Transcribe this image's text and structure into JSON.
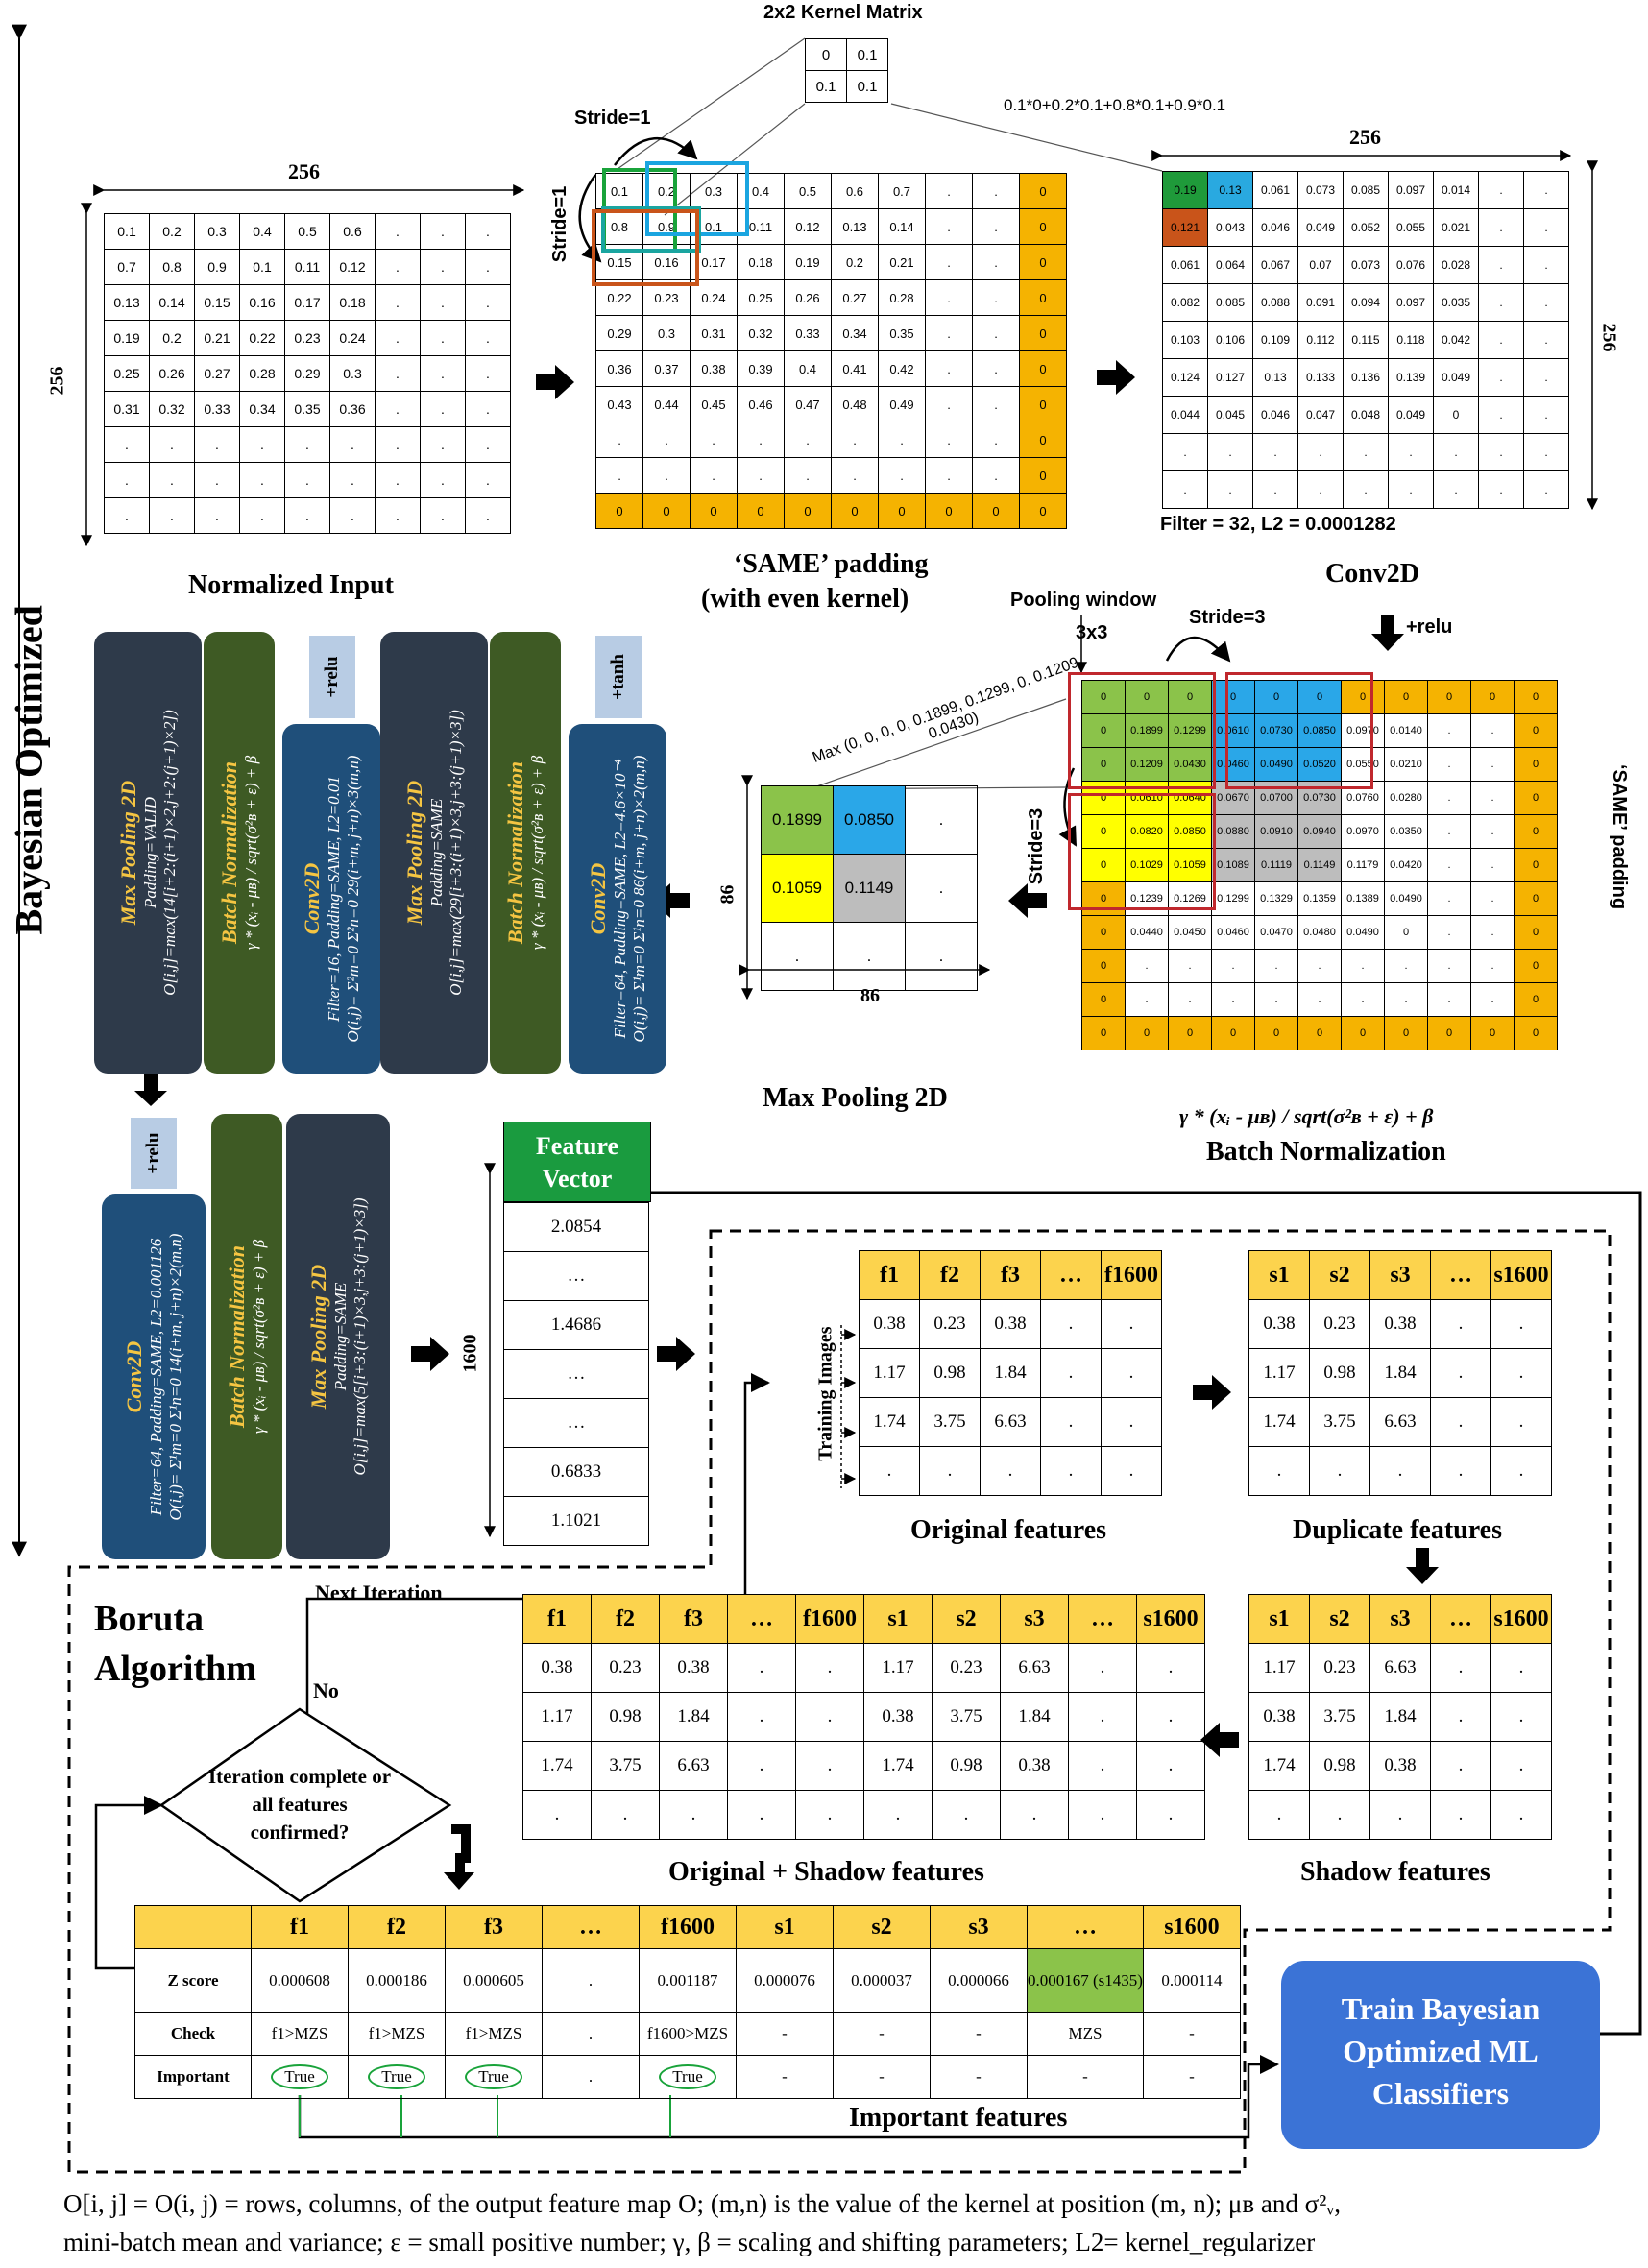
{
  "left_axis": {
    "label": "Bayesian  Optimized"
  },
  "kernel": {
    "title": "2x2 Kernel Matrix",
    "cells": [
      [
        "0",
        "0.1"
      ],
      [
        "0.1",
        "0.1"
      ]
    ],
    "formula": "0.1*0+0.2*0.1+0.8*0.1+0.9*0.1"
  },
  "input_grid": {
    "dim_label": "256",
    "side_label": "256",
    "caption": "Normalized Input",
    "rows": [
      [
        "0.1",
        "0.2",
        "0.3",
        "0.4",
        "0.5",
        "0.6",
        ".",
        ".",
        "."
      ],
      [
        "0.7",
        "0.8",
        "0.9",
        "0.1",
        "0.11",
        "0.12",
        ".",
        ".",
        "."
      ],
      [
        "0.13",
        "0.14",
        "0.15",
        "0.16",
        "0.17",
        "0.18",
        ".",
        ".",
        "."
      ],
      [
        "0.19",
        "0.2",
        "0.21",
        "0.22",
        "0.23",
        "0.24",
        ".",
        ".",
        "."
      ],
      [
        "0.25",
        "0.26",
        "0.27",
        "0.28",
        "0.29",
        "0.3",
        ".",
        ".",
        "."
      ],
      [
        "0.31",
        "0.32",
        "0.33",
        "0.34",
        "0.35",
        "0.36",
        ".",
        ".",
        "."
      ],
      [
        ".",
        ".",
        ".",
        ".",
        ".",
        ".",
        ".",
        ".",
        "."
      ],
      [
        ".",
        ".",
        ".",
        ".",
        ".",
        ".",
        ".",
        ".",
        "."
      ],
      [
        ".",
        ".",
        ".",
        ".",
        ".",
        ".",
        ".",
        ".",
        "."
      ]
    ]
  },
  "padded_grid": {
    "stride_top": "Stride=1",
    "stride_left": "Stride=1",
    "caption_line1": "‘SAME’ padding",
    "caption_line2": "(with even kernel)",
    "rows": [
      [
        "0.1",
        "0.2",
        "0.3",
        "0.4",
        "0.5",
        "0.6",
        "0.7",
        ".",
        ".",
        "0"
      ],
      [
        "0.8",
        "0.9",
        "0.1",
        "0.11",
        "0.12",
        "0.13",
        "0.14",
        ".",
        ".",
        "0"
      ],
      [
        "0.15",
        "0.16",
        "0.17",
        "0.18",
        "0.19",
        "0.2",
        "0.21",
        ".",
        ".",
        "0"
      ],
      [
        "0.22",
        "0.23",
        "0.24",
        "0.25",
        "0.26",
        "0.27",
        "0.28",
        ".",
        ".",
        "0"
      ],
      [
        "0.29",
        "0.3",
        "0.31",
        "0.32",
        "0.33",
        "0.34",
        "0.35",
        ".",
        ".",
        "0"
      ],
      [
        "0.36",
        "0.37",
        "0.38",
        "0.39",
        "0.4",
        "0.41",
        "0.42",
        ".",
        ".",
        "0"
      ],
      [
        "0.43",
        "0.44",
        "0.45",
        "0.46",
        "0.47",
        "0.48",
        "0.49",
        ".",
        ".",
        "0"
      ],
      [
        ".",
        ".",
        ".",
        ".",
        ".",
        ".",
        ".",
        ".",
        ".",
        "0"
      ],
      [
        ".",
        ".",
        ".",
        ".",
        ".",
        ".",
        ".",
        ".",
        ".",
        "0"
      ],
      [
        "0",
        "0",
        "0",
        "0",
        "0",
        "0",
        "0",
        "0",
        "0",
        "0"
      ]
    ]
  },
  "conv_grid": {
    "dim_label": "256",
    "side_label": "256",
    "filter_label": "Filter = 32, L2 = 0.0001282",
    "caption": "Conv2D",
    "relu": "+relu",
    "rows": [
      [
        "0.19",
        "0.13",
        "0.061",
        "0.073",
        "0.085",
        "0.097",
        "0.014",
        ".",
        "."
      ],
      [
        "0.121",
        "0.043",
        "0.046",
        "0.049",
        "0.052",
        "0.055",
        "0.021",
        ".",
        "."
      ],
      [
        "0.061",
        "0.064",
        "0.067",
        "0.07",
        "0.073",
        "0.076",
        "0.028",
        ".",
        "."
      ],
      [
        "0.082",
        "0.085",
        "0.088",
        "0.091",
        "0.094",
        "0.097",
        "0.035",
        ".",
        "."
      ],
      [
        "0.103",
        "0.106",
        "0.109",
        "0.112",
        "0.115",
        "0.118",
        "0.042",
        ".",
        "."
      ],
      [
        "0.124",
        "0.127",
        "0.13",
        "0.133",
        "0.136",
        "0.139",
        "0.049",
        ".",
        "."
      ],
      [
        "0.044",
        "0.045",
        "0.046",
        "0.047",
        "0.048",
        "0.049",
        "0",
        ".",
        "."
      ],
      [
        ".",
        ".",
        ".",
        ".",
        ".",
        ".",
        ".",
        ".",
        "."
      ],
      [
        ".",
        ".",
        ".",
        ".",
        ".",
        ".",
        ".",
        ".",
        "."
      ]
    ]
  },
  "bn_grid": {
    "pool_window": "Pooling window",
    "pool_size": "3x3",
    "stride_top": "Stride=3",
    "stride_left": "Stride=3",
    "side_caption": "‘SAME’ padding",
    "formula": "γ * (xᵢ - μʙ) / sqrt(σ²ʙ + ε) + β",
    "caption": "Batch Normalization",
    "max_text": "Max (0, 0, 0, 0, 0.1899, 0.1299, 0, 0.1209, 0.0430)",
    "rows": [
      [
        "0",
        "0",
        "0",
        "0",
        "0",
        "0",
        "0",
        "0",
        "0",
        "0",
        "0"
      ],
      [
        "0",
        "0.1899",
        "0.1299",
        "0.0610",
        "0.0730",
        "0.0850",
        "0.0970",
        "0.0140",
        ".",
        ".",
        "0"
      ],
      [
        "0",
        "0.1209",
        "0.0430",
        "0.0460",
        "0.0490",
        "0.0520",
        "0.0550",
        "0.0210",
        ".",
        ".",
        "0"
      ],
      [
        "0",
        "0.0610",
        "0.0640",
        "0.0670",
        "0.0700",
        "0.0730",
        "0.0760",
        "0.0280",
        ".",
        ".",
        "0"
      ],
      [
        "0",
        "0.0820",
        "0.0850",
        "0.0880",
        "0.0910",
        "0.0940",
        "0.0970",
        "0.0350",
        ".",
        ".",
        "0"
      ],
      [
        "0",
        "0.1029",
        "0.1059",
        "0.1089",
        "0.1119",
        "0.1149",
        "0.1179",
        "0.0420",
        ".",
        ".",
        "0"
      ],
      [
        "0",
        "0.1239",
        "0.1269",
        "0.1299",
        "0.1329",
        "0.1359",
        "0.1389",
        "0.0490",
        ".",
        ".",
        "0"
      ],
      [
        "0",
        "0.0440",
        "0.0450",
        "0.0460",
        "0.0470",
        "0.0480",
        "0.0490",
        "0",
        ".",
        ".",
        "0"
      ],
      [
        "0",
        ".",
        ".",
        ".",
        ".",
        ".",
        ".",
        ".",
        ".",
        ".",
        "0"
      ],
      [
        "0",
        ".",
        ".",
        ".",
        ".",
        ".",
        ".",
        ".",
        ".",
        ".",
        "0"
      ],
      [
        "0",
        "0",
        "0",
        "0",
        "0",
        "0",
        "0",
        "0",
        "0",
        "0",
        "0"
      ]
    ]
  },
  "pool_grid": {
    "dim": "86",
    "side": "86",
    "caption": "Max Pooling 2D",
    "rows": [
      [
        "0.1899",
        "0.0850",
        "."
      ],
      [
        "0.1059",
        "0.1149",
        "."
      ],
      [
        ".",
        ".",
        "."
      ]
    ]
  },
  "blocks_row1": [
    {
      "title": "Max Pooling 2D",
      "l1": "Padding=VALID",
      "l2": "O[i,j]=max(14[i+2:(i+1)×2,j+2:(j+1)×2])"
    },
    {
      "title": "Batch Normalization",
      "l1": "γ * (xᵢ - μʙ) / sqrt(σ²ʙ + ε) + β",
      "l2": ""
    },
    {
      "title": "Conv2D",
      "l1": "Filter=16, Padding=SAME, L2=0.01",
      "l2": "O(i,j)= Σ²m=0 Σ²n=0  29(i+m, j+n)×3(m,n)",
      "tag": "+relu"
    },
    {
      "title": "Max Pooling 2D",
      "l1": "Padding=SAME",
      "l2": "O[i,j]=max(29[i+3:(i+1)×3,j+3:(j+1)×3])"
    },
    {
      "title": "Batch Normalization",
      "l1": "γ * (xᵢ - μʙ) / sqrt(σ²ʙ + ε) + β",
      "l2": ""
    },
    {
      "title": "Conv2D",
      "l1": "Filter=64, Padding=SAME, L2=4.6×10⁻⁴",
      "l2": "O(i,j)= Σ¹m=0 Σ¹n=0  86(i+m, j+n)×2(m,n)",
      "tag": "+tanh"
    }
  ],
  "blocks_row2": [
    {
      "title": "Conv2D",
      "l1": "Filter=64, Padding=SAME, L2=0.001126",
      "l2": "O(i,j)= Σ¹m=0 Σ¹n=0  14(i+m, j+n)×2(m,n)",
      "tag": "+relu"
    },
    {
      "title": "Batch Normalization",
      "l1": "γ * (xᵢ - μʙ) / sqrt(σ²ʙ + ε) + β",
      "l2": ""
    },
    {
      "title": "Max Pooling 2D",
      "l1": "Padding=SAME",
      "l2": "O[i,j]=max(5[i+3:(i+1)×3,j+3:(j+1)×3])"
    }
  ],
  "feature_vector": {
    "header": "Feature Vector",
    "length": "1600",
    "values": [
      "2.0854",
      "…",
      "1.4686",
      "…",
      "…",
      "0.6833",
      "1.1021"
    ]
  },
  "original_features": {
    "caption": "Original features",
    "side": "Training Images",
    "headers": [
      "f1",
      "f2",
      "f3",
      "…",
      "f1600"
    ],
    "rows": [
      [
        "0.38",
        "0.23",
        "0.38",
        ".",
        "."
      ],
      [
        "1.17",
        "0.98",
        "1.84",
        ".",
        "."
      ],
      [
        "1.74",
        "3.75",
        "6.63",
        ".",
        "."
      ],
      [
        ".",
        ".",
        ".",
        ".",
        "."
      ]
    ]
  },
  "duplicate_features": {
    "caption": "Duplicate features",
    "headers": [
      "s1",
      "s2",
      "s3",
      "…",
      "s1600"
    ],
    "rows": [
      [
        "0.38",
        "0.23",
        "0.38",
        ".",
        "."
      ],
      [
        "1.17",
        "0.98",
        "1.84",
        ".",
        "."
      ],
      [
        "1.74",
        "3.75",
        "6.63",
        ".",
        "."
      ],
      [
        ".",
        ".",
        ".",
        ".",
        "."
      ]
    ]
  },
  "shadow_features": {
    "caption": "Shadow features",
    "headers": [
      "s1",
      "s2",
      "s3",
      "…",
      "s1600"
    ],
    "rows": [
      [
        "1.17",
        "0.23",
        "6.63",
        ".",
        "."
      ],
      [
        "0.38",
        "3.75",
        "1.84",
        ".",
        "."
      ],
      [
        "1.74",
        "0.98",
        "0.38",
        ".",
        "."
      ],
      [
        ".",
        ".",
        ".",
        ".",
        "."
      ]
    ]
  },
  "combined_features": {
    "caption": "Original + Shadow features",
    "headers": [
      "f1",
      "f2",
      "f3",
      "…",
      "f1600",
      "s1",
      "s2",
      "s3",
      "…",
      "s1600"
    ],
    "rows": [
      [
        "0.38",
        "0.23",
        "0.38",
        ".",
        ".",
        "1.17",
        "0.23",
        "6.63",
        ".",
        "."
      ],
      [
        "1.17",
        "0.98",
        "1.84",
        ".",
        ".",
        "0.38",
        "3.75",
        "1.84",
        ".",
        "."
      ],
      [
        "1.74",
        "3.75",
        "6.63",
        ".",
        ".",
        "1.74",
        "0.98",
        "0.38",
        ".",
        "."
      ],
      [
        ".",
        ".",
        ".",
        ".",
        ".",
        ".",
        ".",
        ".",
        ".",
        "."
      ]
    ]
  },
  "boruta": {
    "title_line1": "Boruta",
    "title_line2": "Algorithm",
    "next_iter": "Next Iteration",
    "no": "No",
    "decision": "Iteration complete or all features confirmed?",
    "important_caption": "Important features",
    "train_box": "Train Bayesian Optimized ML Classifiers"
  },
  "zscore_table": {
    "headers": [
      "",
      "f1",
      "f2",
      "f3",
      "…",
      "f1600",
      "s1",
      "s2",
      "s3",
      "…",
      "s1600"
    ],
    "z": [
      "Z score",
      "0.000608",
      "0.000186",
      "0.000605",
      ".",
      "0.001187",
      "0.000076",
      "0.000037",
      "0.000066",
      "0.000167 (s1435)",
      "0.000114"
    ],
    "check": [
      "Check",
      "f1>MZS",
      "f1>MZS",
      "f1>MZS",
      ".",
      "f1600>MZS",
      "-",
      "-",
      "-",
      "MZS",
      "-"
    ],
    "important": [
      "Important",
      "True",
      "True",
      "True",
      ".",
      "True",
      "-",
      "-",
      "-",
      "-",
      "-"
    ]
  },
  "footnote": {
    "line1": "O[i, j] = O(i, j) = rows, columns, of the output feature map O; (m,n) is the value of the kernel at position (m, n); μʙ and σ²ᵥ,",
    "line2": "mini-batch mean and variance; ε = small positive number; γ, β = scaling and shifting parameters; L2= kernel_regularizer"
  },
  "colors": {
    "pad": "#f5b301",
    "header": "#fcd34d",
    "green": "#8bc34a",
    "blue": "#2aa7e8",
    "block_dark": "#2e3a4a",
    "block_green": "#3e5a24",
    "block_blue": "#1f4f7a",
    "train_box": "#3b73d6",
    "vector_hdr": "#1a9b3f"
  }
}
